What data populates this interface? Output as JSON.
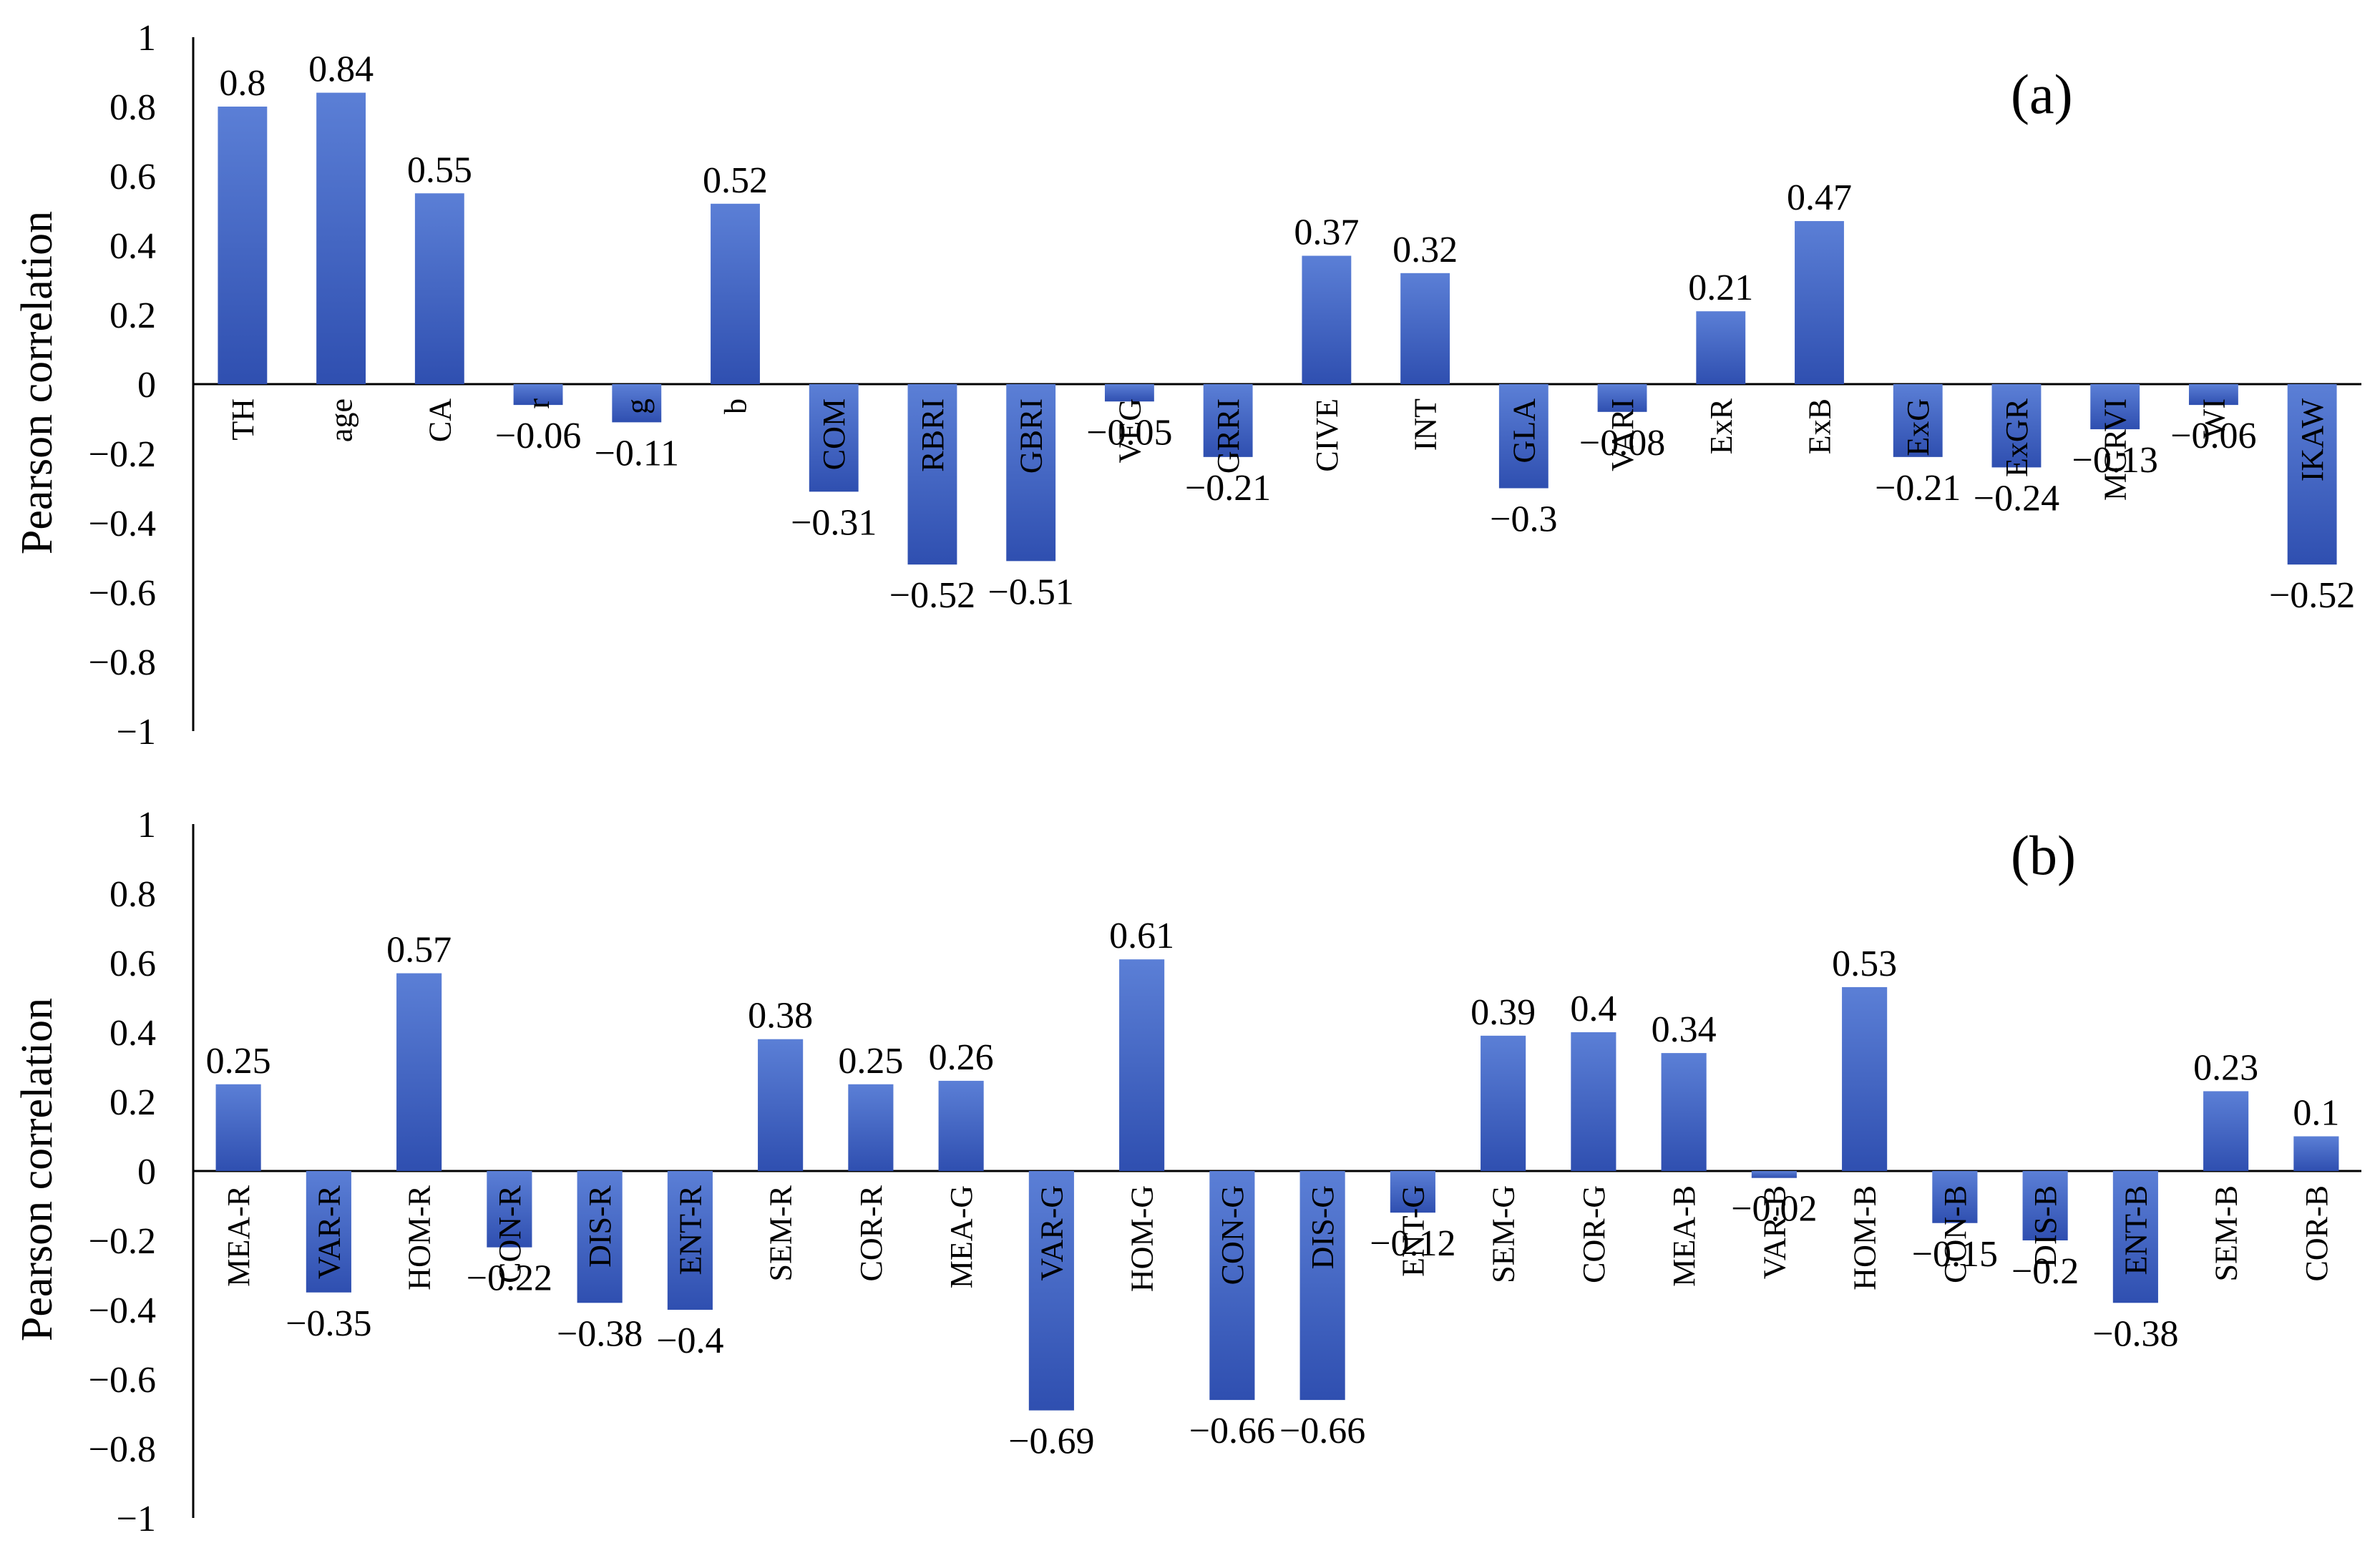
{
  "colors": {
    "bar_top": "#5b7fd6",
    "bar_bottom": "#2f4fb0",
    "axis": "#000000",
    "text": "#000000"
  },
  "chart_data": [
    {
      "type": "bar",
      "panel_label": "(a)",
      "ylabel": "Pearson correlation",
      "ylim": [
        -1,
        1
      ],
      "yticks": [
        1,
        0.8,
        0.6,
        0.4,
        0.2,
        0,
        -0.2,
        -0.4,
        -0.6,
        -0.8,
        -1
      ],
      "ytick_labels": [
        "1",
        "0.8",
        "0.6",
        "0.4",
        "0.2",
        "0",
        "−0.2",
        "−0.4",
        "−0.6",
        "−0.8",
        "−1"
      ],
      "categories": [
        "TH",
        "age",
        "CA",
        "r",
        "g",
        "b",
        "COM",
        "RBRI",
        "GBRI",
        "VEG",
        "GRRI",
        "CIVE",
        "INT",
        "GLA",
        "VARI",
        "ExR",
        "ExB",
        "ExG",
        "ExGR",
        "MGRVI",
        "WI",
        "IKAW"
      ],
      "values": [
        0.8,
        0.84,
        0.55,
        -0.06,
        -0.11,
        0.52,
        -0.31,
        -0.52,
        -0.51,
        -0.05,
        -0.21,
        0.37,
        0.32,
        -0.3,
        -0.08,
        0.21,
        0.47,
        -0.21,
        -0.24,
        -0.13,
        -0.06,
        -0.52
      ],
      "value_labels": [
        "0.8",
        "0.84",
        "0.55",
        "−0.06",
        "−0.11",
        "0.52",
        "−0.31",
        "−0.52",
        "−0.51",
        "−0.05",
        "−0.21",
        "0.37",
        "0.32",
        "−0.3",
        "−0.08",
        "0.21",
        "0.47",
        "−0.21",
        "−0.24",
        "−0.13",
        "−0.06",
        "−0.52"
      ]
    },
    {
      "type": "bar",
      "panel_label": "(b)",
      "ylabel": "Pearson correlation",
      "ylim": [
        -1,
        1
      ],
      "yticks": [
        1,
        0.8,
        0.6,
        0.4,
        0.2,
        0,
        -0.2,
        -0.4,
        -0.6,
        -0.8,
        -1
      ],
      "ytick_labels": [
        "1",
        "0.8",
        "0.6",
        "0.4",
        "0.2",
        "0",
        "−0.2",
        "−0.4",
        "−0.6",
        "−0.8",
        "−1"
      ],
      "categories": [
        "MEA-R",
        "VAR-R",
        "HOM-R",
        "CON-R",
        "DIS-R",
        "ENT-R",
        "SEM-R",
        "COR-R",
        "MEA-G",
        "VAR-G",
        "HOM-G",
        "CON-G",
        "DIS-G",
        "ENT-G",
        "SEM-G",
        "COR-G",
        "MEA-B",
        "VAR-B",
        "HOM-B",
        "CON-B",
        "DIS-B",
        "ENT-B",
        "SEM-B",
        "COR-B"
      ],
      "values": [
        0.25,
        -0.35,
        0.57,
        -0.22,
        -0.38,
        -0.4,
        0.38,
        0.25,
        0.26,
        -0.69,
        0.61,
        -0.66,
        -0.66,
        -0.12,
        0.39,
        0.4,
        0.34,
        -0.02,
        0.53,
        -0.15,
        -0.2,
        -0.38,
        0.23,
        0.1
      ],
      "value_labels": [
        "0.25",
        "−0.35",
        "0.57",
        "−0.22",
        "−0.38",
        "−0.4",
        "0.38",
        "0.25",
        "0.26",
        "−0.69",
        "0.61",
        "−0.66",
        "−0.66",
        "−0.12",
        "0.39",
        "0.4",
        "0.34",
        "−0.02",
        "0.53",
        "−0.15",
        "−0.2",
        "−0.38",
        "0.23",
        "0.1"
      ]
    }
  ]
}
